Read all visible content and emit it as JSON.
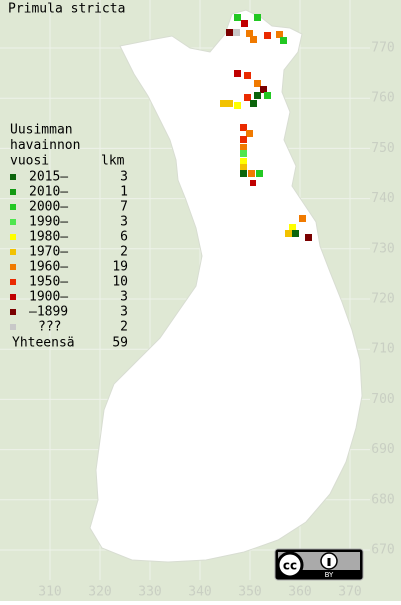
{
  "title": "Primula stricta",
  "legend": {
    "heading": [
      "Uusimman",
      "havainnon",
      "vuosi"
    ],
    "count_heading": "lkm",
    "rows": [
      {
        "label": "2015–",
        "count": 3,
        "color": "#0b640b"
      },
      {
        "label": "2010–",
        "count": 1,
        "color": "#139a13"
      },
      {
        "label": "2000–",
        "count": 7,
        "color": "#22c822"
      },
      {
        "label": "1990–",
        "count": 3,
        "color": "#4ee64e"
      },
      {
        "label": "1980–",
        "count": 6,
        "color": "#ffff00"
      },
      {
        "label": "1970–",
        "count": 2,
        "color": "#f2c200"
      },
      {
        "label": "1960–",
        "count": 19,
        "color": "#f07a00"
      },
      {
        "label": "1950–",
        "count": 10,
        "color": "#ea2a00"
      },
      {
        "label": "1900–",
        "count": 3,
        "color": "#c00000"
      },
      {
        "label": "–1899",
        "count": 3,
        "color": "#7a0000"
      },
      {
        "label": "???",
        "count": 2,
        "color": "#c8c8c8"
      }
    ],
    "total": {
      "label": "Yhteensä",
      "count": 59
    }
  },
  "grid": {
    "x_labels": [
      310,
      320,
      330,
      340,
      350,
      360,
      370
    ],
    "y_labels": [
      770,
      760,
      750,
      740,
      730,
      720,
      710,
      700,
      690,
      680,
      670
    ]
  },
  "license": {
    "mark": "cc",
    "attribution": "BY"
  }
}
